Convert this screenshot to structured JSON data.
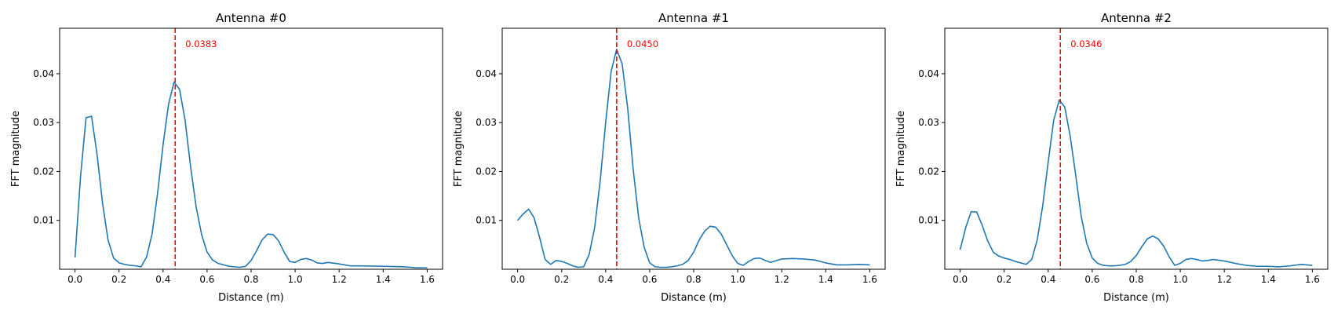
{
  "colors": {
    "line": "#1f77b4",
    "marker": "#ff0000",
    "axes": "#000000",
    "background": "#ffffff"
  },
  "chart_data": [
    {
      "type": "line",
      "title": "Antenna #0",
      "xlabel": "Distance (m)",
      "ylabel": "FFT magnitude",
      "xlim": [
        -0.07,
        1.67
      ],
      "ylim": [
        0.0,
        0.0493
      ],
      "xticks": [
        0.0,
        0.2,
        0.4,
        0.6,
        0.8,
        1.0,
        1.2,
        1.4,
        1.6
      ],
      "xtick_labels": [
        "0.0",
        "0.2",
        "0.4",
        "0.6",
        "0.8",
        "1.0",
        "1.2",
        "1.4",
        "1.6"
      ],
      "yticks": [
        0.01,
        0.02,
        0.03,
        0.04
      ],
      "ytick_labels": [
        "0.01",
        "0.02",
        "0.03",
        "0.04"
      ],
      "grid": false,
      "marker_x": 0.455,
      "marker_label": "0.0383",
      "series": [
        {
          "x": [
            0.0,
            0.025,
            0.05,
            0.075,
            0.1,
            0.125,
            0.15,
            0.175,
            0.2,
            0.225,
            0.25,
            0.275,
            0.3,
            0.325,
            0.35,
            0.375,
            0.4,
            0.425,
            0.45,
            0.475,
            0.5,
            0.525,
            0.55,
            0.575,
            0.6,
            0.625,
            0.65,
            0.675,
            0.7,
            0.725,
            0.75,
            0.775,
            0.8,
            0.825,
            0.85,
            0.875,
            0.9,
            0.925,
            0.95,
            0.975,
            1.0,
            1.025,
            1.05,
            1.075,
            1.1,
            1.125,
            1.15,
            1.2,
            1.25,
            1.3,
            1.4,
            1.5,
            1.55,
            1.6
          ],
          "y": [
            0.0024,
            0.019,
            0.031,
            0.0313,
            0.0235,
            0.0135,
            0.006,
            0.0023,
            0.0013,
            0.001,
            0.0008,
            0.0007,
            0.0005,
            0.0025,
            0.0072,
            0.0155,
            0.0255,
            0.0338,
            0.0383,
            0.0368,
            0.0305,
            0.021,
            0.0128,
            0.0071,
            0.0035,
            0.0019,
            0.0012,
            0.0009,
            0.0006,
            0.0005,
            0.0004,
            0.0006,
            0.0018,
            0.0038,
            0.006,
            0.0072,
            0.0071,
            0.0058,
            0.0035,
            0.0016,
            0.0014,
            0.002,
            0.0022,
            0.0019,
            0.0013,
            0.0012,
            0.0014,
            0.0011,
            0.0007,
            0.0007,
            0.0006,
            0.0005,
            0.0003,
            0.0003
          ]
        }
      ]
    },
    {
      "type": "line",
      "title": "Antenna #1",
      "xlabel": "Distance (m)",
      "ylabel": "FFT magnitude",
      "xlim": [
        -0.07,
        1.67
      ],
      "ylim": [
        0.0,
        0.0493
      ],
      "xticks": [
        0.0,
        0.2,
        0.4,
        0.6,
        0.8,
        1.0,
        1.2,
        1.4,
        1.6
      ],
      "xtick_labels": [
        "0.0",
        "0.2",
        "0.4",
        "0.6",
        "0.8",
        "1.0",
        "1.2",
        "1.4",
        "1.6"
      ],
      "yticks": [
        0.01,
        0.02,
        0.03,
        0.04
      ],
      "ytick_labels": [
        "0.01",
        "0.02",
        "0.03",
        "0.04"
      ],
      "grid": false,
      "marker_x": 0.45,
      "marker_label": "0.0450",
      "series": [
        {
          "x": [
            0.0,
            0.025,
            0.05,
            0.075,
            0.1,
            0.125,
            0.15,
            0.175,
            0.2,
            0.225,
            0.25,
            0.275,
            0.3,
            0.325,
            0.35,
            0.375,
            0.4,
            0.425,
            0.45,
            0.475,
            0.5,
            0.525,
            0.55,
            0.575,
            0.6,
            0.625,
            0.65,
            0.675,
            0.7,
            0.725,
            0.75,
            0.775,
            0.8,
            0.825,
            0.85,
            0.875,
            0.9,
            0.925,
            0.95,
            0.975,
            1.0,
            1.025,
            1.05,
            1.075,
            1.1,
            1.125,
            1.15,
            1.2,
            1.25,
            1.3,
            1.35,
            1.4,
            1.45,
            1.5,
            1.55,
            1.6
          ],
          "y": [
            0.01,
            0.0113,
            0.0123,
            0.0105,
            0.0065,
            0.002,
            0.001,
            0.0018,
            0.0016,
            0.0012,
            0.0007,
            0.0004,
            0.0005,
            0.003,
            0.0085,
            0.018,
            0.03,
            0.0405,
            0.045,
            0.042,
            0.033,
            0.0205,
            0.0105,
            0.0045,
            0.0013,
            0.0005,
            0.0004,
            0.0004,
            0.0005,
            0.0007,
            0.001,
            0.0018,
            0.0035,
            0.006,
            0.0078,
            0.0088,
            0.0086,
            0.0072,
            0.005,
            0.0028,
            0.0012,
            0.0008,
            0.0016,
            0.0022,
            0.0023,
            0.0018,
            0.0014,
            0.0021,
            0.0022,
            0.0021,
            0.0019,
            0.0013,
            0.0009,
            0.0009,
            0.001,
            0.0009
          ]
        }
      ]
    },
    {
      "type": "line",
      "title": "Antenna #2",
      "xlabel": "Distance (m)",
      "ylabel": "FFT magnitude",
      "xlim": [
        -0.07,
        1.67
      ],
      "ylim": [
        0.0,
        0.0493
      ],
      "xticks": [
        0.0,
        0.2,
        0.4,
        0.6,
        0.8,
        1.0,
        1.2,
        1.4,
        1.6
      ],
      "xtick_labels": [
        "0.0",
        "0.2",
        "0.4",
        "0.6",
        "0.8",
        "1.0",
        "1.2",
        "1.4",
        "1.6"
      ],
      "yticks": [
        0.01,
        0.02,
        0.03,
        0.04
      ],
      "ytick_labels": [
        "0.01",
        "0.02",
        "0.03",
        "0.04"
      ],
      "grid": false,
      "marker_x": 0.455,
      "marker_label": "0.0346",
      "series": [
        {
          "x": [
            0.0,
            0.025,
            0.05,
            0.075,
            0.1,
            0.125,
            0.15,
            0.175,
            0.2,
            0.225,
            0.25,
            0.275,
            0.3,
            0.325,
            0.35,
            0.375,
            0.4,
            0.425,
            0.45,
            0.475,
            0.5,
            0.525,
            0.55,
            0.575,
            0.6,
            0.625,
            0.65,
            0.675,
            0.7,
            0.725,
            0.75,
            0.775,
            0.8,
            0.825,
            0.85,
            0.875,
            0.9,
            0.925,
            0.95,
            0.975,
            1.0,
            1.025,
            1.05,
            1.075,
            1.1,
            1.125,
            1.15,
            1.2,
            1.25,
            1.3,
            1.35,
            1.4,
            1.45,
            1.5,
            1.55,
            1.6
          ],
          "y": [
            0.004,
            0.0085,
            0.0118,
            0.0117,
            0.009,
            0.0058,
            0.0035,
            0.0027,
            0.0023,
            0.002,
            0.0016,
            0.0013,
            0.001,
            0.002,
            0.006,
            0.013,
            0.022,
            0.0305,
            0.0346,
            0.0332,
            0.0272,
            0.0192,
            0.0108,
            0.0053,
            0.0023,
            0.0012,
            0.0008,
            0.0007,
            0.0007,
            0.0008,
            0.001,
            0.0016,
            0.0028,
            0.0046,
            0.0062,
            0.0068,
            0.0062,
            0.0047,
            0.0025,
            0.0008,
            0.0012,
            0.002,
            0.0022,
            0.002,
            0.0017,
            0.0018,
            0.002,
            0.0017,
            0.0012,
            0.0008,
            0.0006,
            0.0006,
            0.0005,
            0.0007,
            0.001,
            0.0008
          ]
        }
      ]
    }
  ]
}
